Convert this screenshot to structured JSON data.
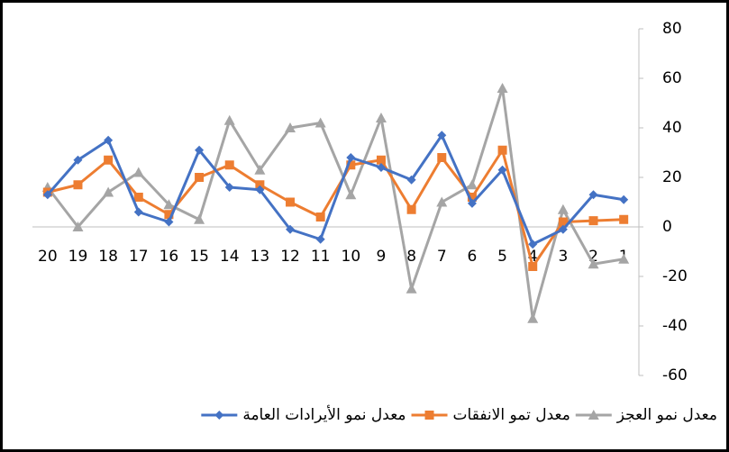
{
  "chart_data": {
    "type": "line",
    "categories": [
      "1",
      "2",
      "3",
      "4",
      "5",
      "6",
      "7",
      "8",
      "9",
      "10",
      "11",
      "12",
      "13",
      "14",
      "15",
      "16",
      "17",
      "18",
      "19",
      "20"
    ],
    "x_reversed": true,
    "y_axis_position": "right",
    "legend": "bottom",
    "ylim": [
      -60,
      80
    ],
    "yticks": [
      -60,
      -40,
      -20,
      0,
      20,
      40,
      60,
      80
    ],
    "series": [
      {
        "name": "معدل نمو الأيرادات العامة",
        "color": "#4472c4",
        "marker": "diamond",
        "values": [
          11,
          13,
          -1,
          -7,
          23,
          9.5,
          37,
          19,
          24,
          28,
          -5,
          -1,
          15,
          16,
          31,
          2,
          6,
          35,
          27,
          13
        ]
      },
      {
        "name": "معدل تمو الانفقات",
        "color": "#ed7d31",
        "marker": "square",
        "values": [
          3,
          2.5,
          2,
          -16,
          31,
          12,
          28,
          7,
          27,
          25,
          4,
          10,
          17,
          25,
          20,
          5,
          12,
          27,
          17,
          14
        ]
      },
      {
        "name": "معدل نمو العجز",
        "color": "#a5a5a5",
        "marker": "triangle",
        "values": [
          -13,
          -15,
          7,
          -37,
          56,
          17,
          10,
          -25,
          44,
          13,
          42,
          40,
          23,
          43,
          3,
          9,
          22,
          14,
          0,
          16
        ]
      }
    ]
  }
}
